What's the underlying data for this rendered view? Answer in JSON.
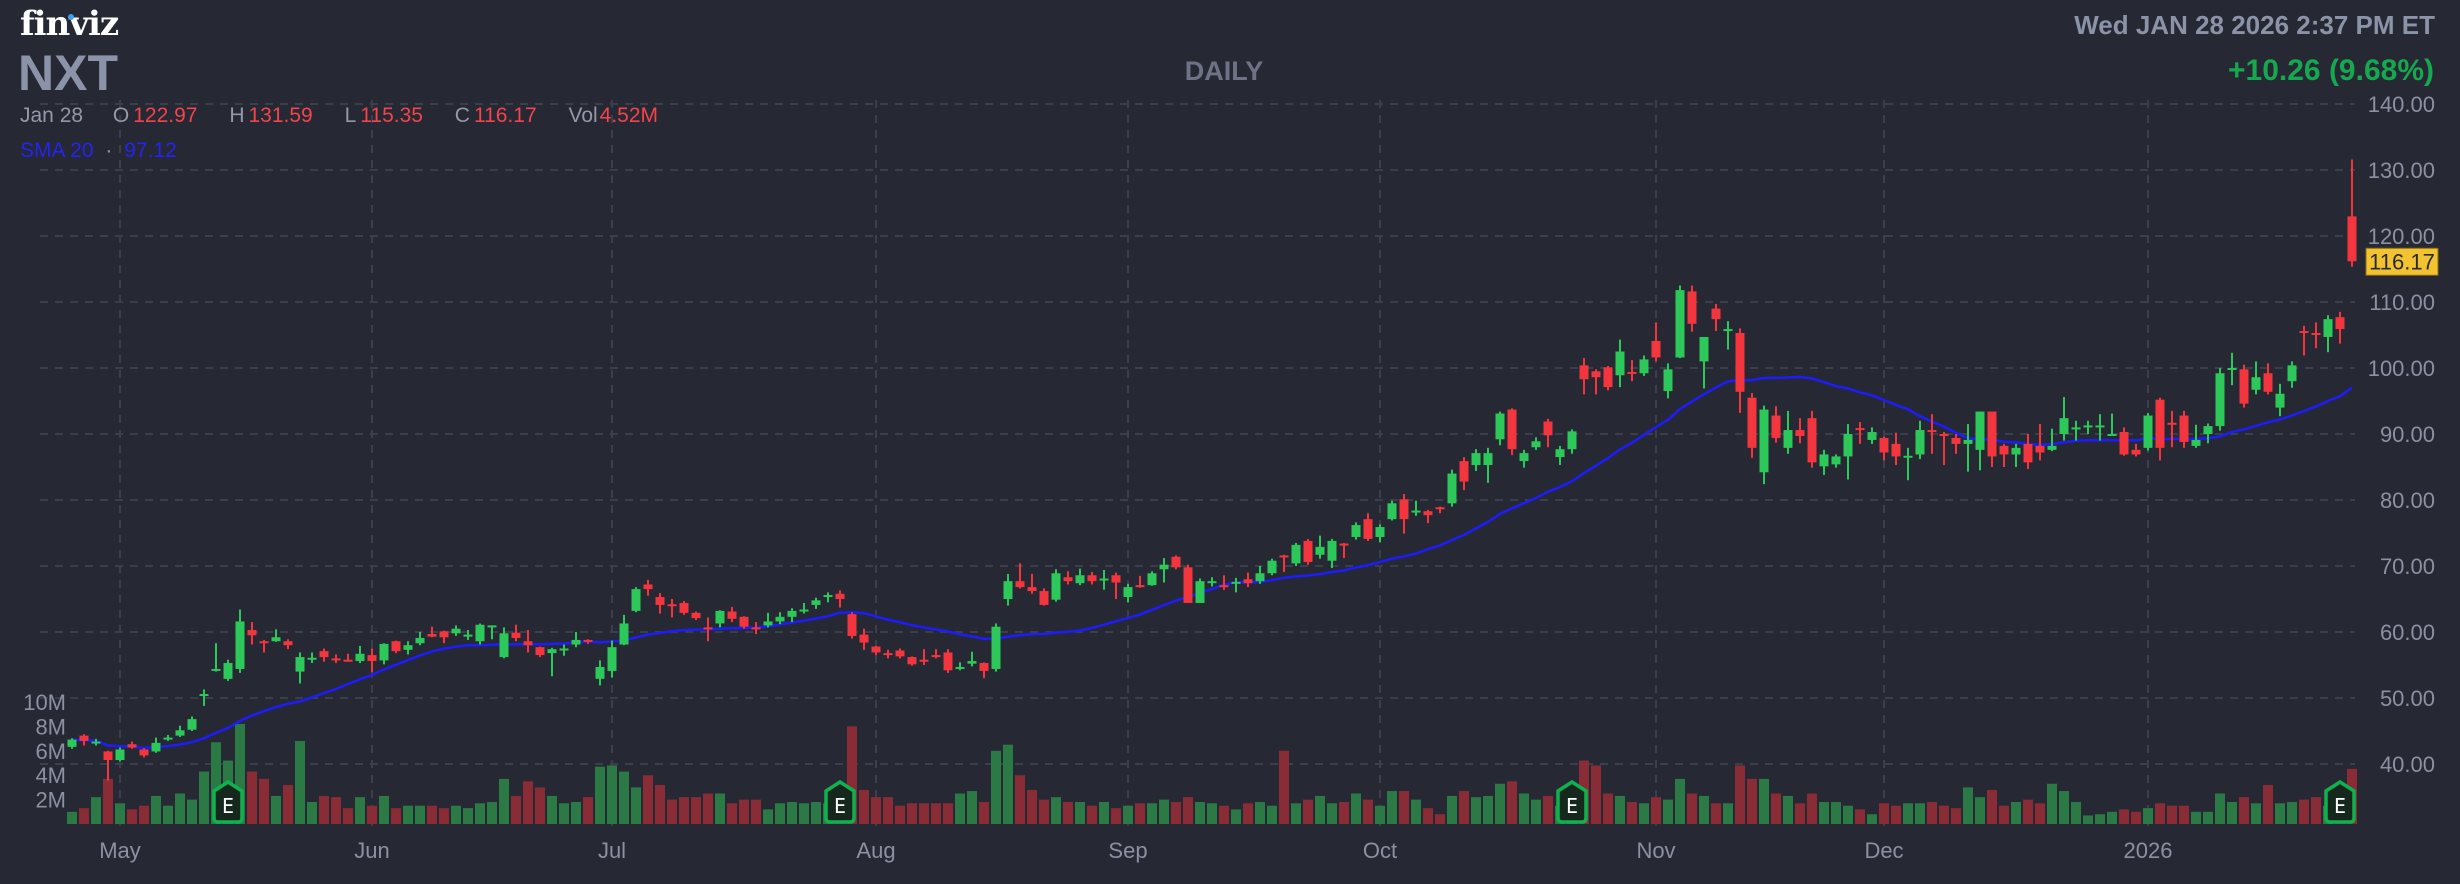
{
  "header": {
    "logo": "finviz",
    "ticker": "NXT",
    "period": "DAILY",
    "datetime": "Wed JAN 28 2026 2:37 PM ET",
    "change": "+10.26 (9.68%)",
    "ohlc": {
      "date": "Jan 28",
      "o_label": "O",
      "o": "122.97",
      "h_label": "H",
      "h": "131.59",
      "l_label": "L",
      "l": "115.35",
      "c_label": "C",
      "c": "116.17",
      "vol_label": "Vol",
      "vol": "4.52M"
    },
    "sma": {
      "label": "SMA 20",
      "sep": "·",
      "value": "97.12"
    }
  },
  "colors": {
    "background": "#262833",
    "up": "#2dc85a",
    "down": "#f3363e",
    "vol_up": "#2b7a45",
    "vol_down": "#8a2c35",
    "sma": "#1c1cff",
    "grid": "#3b3e4b",
    "axis_text": "#8b91a3",
    "last_price_badge": "#f2c230",
    "earnings": "#10b24e"
  },
  "chart_data": {
    "type": "candlestick",
    "title": "NXT DAILY",
    "last_price": "116.17",
    "ylim": [
      40,
      140
    ],
    "price_ticks": [
      "40.00",
      "50.00",
      "60.00",
      "70.00",
      "80.00",
      "90.00",
      "100.00",
      "110.00",
      "120.00",
      "130.00",
      "140.00"
    ],
    "volume_ticks": [
      {
        "label": "2M",
        "v": 2
      },
      {
        "label": "4M",
        "v": 4
      },
      {
        "label": "6M",
        "v": 6
      },
      {
        "label": "8M",
        "v": 8
      },
      {
        "label": "10M",
        "v": 10
      }
    ],
    "months": [
      {
        "label": "May",
        "index": 4
      },
      {
        "label": "Jun",
        "index": 25
      },
      {
        "label": "Jul",
        "index": 45
      },
      {
        "label": "Aug",
        "index": 67
      },
      {
        "label": "Sep",
        "index": 88
      },
      {
        "label": "Oct",
        "index": 109
      },
      {
        "label": "Nov",
        "index": 132
      },
      {
        "label": "Dec",
        "index": 151
      },
      {
        "label": "2026",
        "index": 173
      }
    ],
    "earnings_label": "E",
    "earnings_indices": [
      13,
      64,
      125,
      189
    ],
    "sma_period": 20,
    "ohlc": [
      [
        42.6,
        43.9,
        42.3,
        43.7
      ],
      [
        44.3,
        44.5,
        42.8,
        43.5
      ],
      [
        43.3,
        43.8,
        42.8,
        43.4
      ],
      [
        41.9,
        42.0,
        37.5,
        40.6
      ],
      [
        40.6,
        42.5,
        40.4,
        42.2
      ],
      [
        43.0,
        43.4,
        42.3,
        42.5
      ],
      [
        42.2,
        42.4,
        41.0,
        41.3
      ],
      [
        41.9,
        44.0,
        41.7,
        43.2
      ],
      [
        43.9,
        44.4,
        43.5,
        44.0
      ],
      [
        44.3,
        45.8,
        44.1,
        45.1
      ],
      [
        45.2,
        47.2,
        45.0,
        46.8
      ],
      [
        50.5,
        51.3,
        48.8,
        50.6
      ],
      [
        54.2,
        58.3,
        54.0,
        54.4
      ],
      [
        52.9,
        55.8,
        52.6,
        55.3
      ],
      [
        54.4,
        63.4,
        53.8,
        61.6
      ],
      [
        60.3,
        61.5,
        58.1,
        59.5
      ],
      [
        58.6,
        58.8,
        56.9,
        58.5
      ],
      [
        58.6,
        60.4,
        58.5,
        59.2
      ],
      [
        58.6,
        58.9,
        57.4,
        58.0
      ],
      [
        54.0,
        56.9,
        52.2,
        56.2
      ],
      [
        56.0,
        56.9,
        55.3,
        56.1
      ],
      [
        57.1,
        57.5,
        55.5,
        56.2
      ],
      [
        56.0,
        56.6,
        55.3,
        55.9
      ],
      [
        55.8,
        56.7,
        55.6,
        55.7
      ],
      [
        55.6,
        57.9,
        55.3,
        56.7
      ],
      [
        56.5,
        57.5,
        53.9,
        55.6
      ],
      [
        55.7,
        58.3,
        55.1,
        58.2
      ],
      [
        58.6,
        58.7,
        56.8,
        57.1
      ],
      [
        57.3,
        58.6,
        56.6,
        58.0
      ],
      [
        58.3,
        60.0,
        58.0,
        59.1
      ],
      [
        59.7,
        60.8,
        59.2,
        59.3
      ],
      [
        60.1,
        60.2,
        58.3,
        59.2
      ],
      [
        59.8,
        61.0,
        59.4,
        60.5
      ],
      [
        59.5,
        60.3,
        58.8,
        59.6
      ],
      [
        58.6,
        61.3,
        58.1,
        61.1
      ],
      [
        60.9,
        61.0,
        58.9,
        61.0
      ],
      [
        56.2,
        60.7,
        56.0,
        59.8
      ],
      [
        59.9,
        61.1,
        58.6,
        59.1
      ],
      [
        58.6,
        60.3,
        56.9,
        58.0
      ],
      [
        57.7,
        57.8,
        56.2,
        56.5
      ],
      [
        56.8,
        57.6,
        53.3,
        57.4
      ],
      [
        57.4,
        58.1,
        56.4,
        57.5
      ],
      [
        58.1,
        60.0,
        57.7,
        58.8
      ],
      [
        58.8,
        58.9,
        58.2,
        58.6
      ],
      [
        52.9,
        55.7,
        51.9,
        54.7
      ],
      [
        54.1,
        58.7,
        53.1,
        57.7
      ],
      [
        58.1,
        62.6,
        58.0,
        61.3
      ],
      [
        63.2,
        66.8,
        63.0,
        66.5
      ],
      [
        67.2,
        67.9,
        65.5,
        66.5
      ],
      [
        65.3,
        65.9,
        62.8,
        64.1
      ],
      [
        64.2,
        65.0,
        62.2,
        64.1
      ],
      [
        64.4,
        64.7,
        62.6,
        62.9
      ],
      [
        62.9,
        63.1,
        61.8,
        62.1
      ],
      [
        60.7,
        62.2,
        58.6,
        60.4
      ],
      [
        61.3,
        63.3,
        60.7,
        63.2
      ],
      [
        63.1,
        63.8,
        61.5,
        62.0
      ],
      [
        62.3,
        62.4,
        60.5,
        60.8
      ],
      [
        60.7,
        61.5,
        59.7,
        60.6
      ],
      [
        61.0,
        62.9,
        60.7,
        61.6
      ],
      [
        61.6,
        63.0,
        61.2,
        62.3
      ],
      [
        62.3,
        63.6,
        61.5,
        63.2
      ],
      [
        63.3,
        64.4,
        62.8,
        63.4
      ],
      [
        64.1,
        65.2,
        63.5,
        64.8
      ],
      [
        65.5,
        66.0,
        64.5,
        65.6
      ],
      [
        65.8,
        66.3,
        63.7,
        65.0
      ],
      [
        62.7,
        63.0,
        59.0,
        59.4
      ],
      [
        59.6,
        60.5,
        57.3,
        58.4
      ],
      [
        57.8,
        57.9,
        56.5,
        56.9
      ],
      [
        56.8,
        57.3,
        56.0,
        56.7
      ],
      [
        57.2,
        57.5,
        56.0,
        56.3
      ],
      [
        56.2,
        56.3,
        54.9,
        55.1
      ],
      [
        55.8,
        57.4,
        55.0,
        55.7
      ],
      [
        56.5,
        57.4,
        56.0,
        56.2
      ],
      [
        56.9,
        57.4,
        53.8,
        54.2
      ],
      [
        54.5,
        55.4,
        54.2,
        54.7
      ],
      [
        55.2,
        57.0,
        54.8,
        55.6
      ],
      [
        55.3,
        55.4,
        53.0,
        54.1
      ],
      [
        54.4,
        61.3,
        54.0,
        60.8
      ],
      [
        65.0,
        68.8,
        64.0,
        67.7
      ],
      [
        67.7,
        70.4,
        66.6,
        66.8
      ],
      [
        66.8,
        68.8,
        65.8,
        66.2
      ],
      [
        66.2,
        66.6,
        64.0,
        64.1
      ],
      [
        64.9,
        69.5,
        64.6,
        68.9
      ],
      [
        68.3,
        69.2,
        67.2,
        67.7
      ],
      [
        67.4,
        69.6,
        67.1,
        68.6
      ],
      [
        68.6,
        69.1,
        67.2,
        67.7
      ],
      [
        68.0,
        69.4,
        66.4,
        68.1
      ],
      [
        68.6,
        69.0,
        65.0,
        67.5
      ],
      [
        65.3,
        67.3,
        64.5,
        66.8
      ],
      [
        67.1,
        68.5,
        66.7,
        66.9
      ],
      [
        67.1,
        69.2,
        67.0,
        68.9
      ],
      [
        69.5,
        71.2,
        67.5,
        70.2
      ],
      [
        71.4,
        71.6,
        69.5,
        69.8
      ],
      [
        69.8,
        70.2,
        64.4,
        64.4
      ],
      [
        64.4,
        68.1,
        64.4,
        67.7
      ],
      [
        67.6,
        68.3,
        66.9,
        67.7
      ],
      [
        67.1,
        68.6,
        66.4,
        67.0
      ],
      [
        67.3,
        68.2,
        66.0,
        67.6
      ],
      [
        68.0,
        69.0,
        66.8,
        67.4
      ],
      [
        67.7,
        70.0,
        67.3,
        68.9
      ],
      [
        68.9,
        71.1,
        68.6,
        70.8
      ],
      [
        71.6,
        71.7,
        69.1,
        71.5
      ],
      [
        70.4,
        73.5,
        70.0,
        73.2
      ],
      [
        73.8,
        74.1,
        70.2,
        70.6
      ],
      [
        71.7,
        74.6,
        71.1,
        72.9
      ],
      [
        70.8,
        74.1,
        69.7,
        73.8
      ],
      [
        73.4,
        73.5,
        71.2,
        73.2
      ],
      [
        74.4,
        76.6,
        74.0,
        76.2
      ],
      [
        77.1,
        78.0,
        73.8,
        74.1
      ],
      [
        74.4,
        76.3,
        73.6,
        75.9
      ],
      [
        77.1,
        79.9,
        76.9,
        79.5
      ],
      [
        80.1,
        80.9,
        74.9,
        77.1
      ],
      [
        78.3,
        79.9,
        77.6,
        78.4
      ],
      [
        78.3,
        78.5,
        76.5,
        77.7
      ],
      [
        78.9,
        79.0,
        78.0,
        78.8
      ],
      [
        79.5,
        84.6,
        79.0,
        84.0
      ],
      [
        85.9,
        86.5,
        81.5,
        82.8
      ],
      [
        85.3,
        87.7,
        84.4,
        87.1
      ],
      [
        85.3,
        87.9,
        82.6,
        87.1
      ],
      [
        89.2,
        93.4,
        88.3,
        93.1
      ],
      [
        93.7,
        93.9,
        86.8,
        87.7
      ],
      [
        85.9,
        87.6,
        84.9,
        87.1
      ],
      [
        88.0,
        89.5,
        87.6,
        88.9
      ],
      [
        91.9,
        92.3,
        88.0,
        89.8
      ],
      [
        86.5,
        88.2,
        85.3,
        87.7
      ],
      [
        87.7,
        90.7,
        87.0,
        90.4
      ],
      [
        100.4,
        101.5,
        96.0,
        98.3
      ],
      [
        99.5,
        99.8,
        96.0,
        98.6
      ],
      [
        100.1,
        100.3,
        96.6,
        97.1
      ],
      [
        98.9,
        104.3,
        97.1,
        102.5
      ],
      [
        99.4,
        101.2,
        98.0,
        99.3
      ],
      [
        99.2,
        101.9,
        98.8,
        101.3
      ],
      [
        104.1,
        106.9,
        101.0,
        101.6
      ],
      [
        96.5,
        100.7,
        95.4,
        99.8
      ],
      [
        101.6,
        112.5,
        101.5,
        111.8
      ],
      [
        111.6,
        112.5,
        105.5,
        106.7
      ],
      [
        101.0,
        104.7,
        96.9,
        104.7
      ],
      [
        109.0,
        109.7,
        105.6,
        107.4
      ],
      [
        105.8,
        107.1,
        102.8,
        105.9
      ],
      [
        105.3,
        106.0,
        93.2,
        96.4
      ],
      [
        95.5,
        96.2,
        86.4,
        87.9
      ],
      [
        84.2,
        94.3,
        82.4,
        93.7
      ],
      [
        92.8,
        94.2,
        88.7,
        89.4
      ],
      [
        87.9,
        93.5,
        87.0,
        90.6
      ],
      [
        90.6,
        92.4,
        88.6,
        89.7
      ],
      [
        92.4,
        93.5,
        84.9,
        85.7
      ],
      [
        85.1,
        87.6,
        83.8,
        86.9
      ],
      [
        85.4,
        86.9,
        84.9,
        86.6
      ],
      [
        86.6,
        91.5,
        83.1,
        90.0
      ],
      [
        90.9,
        91.8,
        88.5,
        90.8
      ],
      [
        89.1,
        91.0,
        88.5,
        90.3
      ],
      [
        89.4,
        89.6,
        86.0,
        87.2
      ],
      [
        88.5,
        90.2,
        85.3,
        86.6
      ],
      [
        86.6,
        87.9,
        83.0,
        86.7
      ],
      [
        86.9,
        92.0,
        86.2,
        90.6
      ],
      [
        90.6,
        93.0,
        87.0,
        90.5
      ],
      [
        90.0,
        90.3,
        85.3,
        89.9
      ],
      [
        89.4,
        90.0,
        87.0,
        88.5
      ],
      [
        88.5,
        91.5,
        84.3,
        89.1
      ],
      [
        87.6,
        93.4,
        84.5,
        93.4
      ],
      [
        93.4,
        93.4,
        85.0,
        86.6
      ],
      [
        88.2,
        88.5,
        85.0,
        86.9
      ],
      [
        86.9,
        88.5,
        85.0,
        87.9
      ],
      [
        88.5,
        90.0,
        84.7,
        85.7
      ],
      [
        88.2,
        91.5,
        86.0,
        87.2
      ],
      [
        87.6,
        90.8,
        87.4,
        88.2
      ],
      [
        90.0,
        95.6,
        89.0,
        92.4
      ],
      [
        90.9,
        92.0,
        89.0,
        91.0
      ],
      [
        91.2,
        92.0,
        90.0,
        91.3
      ],
      [
        91.2,
        93.0,
        89.0,
        91.3
      ],
      [
        89.9,
        93.1,
        89.7,
        90.0
      ],
      [
        90.3,
        91.0,
        86.7,
        86.9
      ],
      [
        87.6,
        88.5,
        86.6,
        86.9
      ],
      [
        87.9,
        93.2,
        87.5,
        92.8
      ],
      [
        95.2,
        95.5,
        86.0,
        87.9
      ],
      [
        91.7,
        93.5,
        88.0,
        91.6
      ],
      [
        92.8,
        93.5,
        87.9,
        88.8
      ],
      [
        88.2,
        91.4,
        87.9,
        89.1
      ],
      [
        90.0,
        91.6,
        88.6,
        91.2
      ],
      [
        91.2,
        100.0,
        90.5,
        99.2
      ],
      [
        99.9,
        102.3,
        97.4,
        100.0
      ],
      [
        99.8,
        100.5,
        94.0,
        94.6
      ],
      [
        96.7,
        101.0,
        96.0,
        98.6
      ],
      [
        99.2,
        100.7,
        96.0,
        96.4
      ],
      [
        94.0,
        97.6,
        92.7,
        96.1
      ],
      [
        98.0,
        101.0,
        97.0,
        100.4
      ],
      [
        105.6,
        106.4,
        101.9,
        105.5
      ],
      [
        105.3,
        106.9,
        103.0,
        105.2
      ],
      [
        104.7,
        108.0,
        102.4,
        107.4
      ],
      [
        107.7,
        108.5,
        103.7,
        105.9
      ],
      [
        122.97,
        131.59,
        115.35,
        116.17
      ]
    ],
    "volume_millions": [
      1.0,
      1.3,
      2.2,
      3.7,
      1.7,
      1.2,
      1.5,
      2.3,
      1.5,
      2.5,
      2.0,
      4.3,
      6.7,
      5.2,
      8.2,
      4.3,
      3.7,
      2.3,
      3.2,
      6.8,
      1.8,
      2.3,
      2.2,
      1.3,
      2.2,
      1.5,
      2.3,
      1.3,
      1.5,
      1.5,
      1.5,
      1.3,
      1.5,
      1.3,
      1.7,
      1.8,
      3.7,
      2.3,
      3.5,
      3.0,
      2.3,
      1.7,
      1.8,
      2.2,
      4.7,
      4.8,
      4.3,
      3.0,
      4.0,
      3.2,
      2.0,
      2.2,
      2.2,
      2.5,
      2.5,
      1.7,
      2.0,
      2.0,
      1.2,
      1.7,
      1.8,
      1.7,
      1.8,
      1.7,
      1.7,
      8.0,
      2.8,
      2.2,
      2.2,
      1.5,
      1.7,
      1.7,
      1.7,
      1.7,
      2.5,
      2.7,
      1.8,
      6.0,
      6.5,
      4.0,
      2.8,
      2.0,
      2.2,
      1.8,
      1.8,
      1.5,
      1.8,
      1.3,
      1.5,
      1.7,
      1.7,
      2.0,
      1.8,
      2.2,
      1.8,
      1.7,
      1.5,
      1.2,
      1.7,
      1.8,
      1.5,
      6.0,
      1.7,
      2.0,
      2.3,
      1.7,
      1.8,
      2.5,
      2.0,
      1.5,
      2.7,
      2.7,
      2.0,
      1.3,
      0.8,
      2.3,
      2.7,
      2.2,
      2.3,
      3.3,
      3.5,
      2.5,
      2.0,
      2.3,
      1.5,
      1.5,
      5.2,
      4.8,
      2.5,
      2.3,
      1.8,
      1.7,
      2.2,
      2.0,
      3.7,
      2.5,
      2.3,
      1.7,
      1.7,
      4.8,
      3.7,
      3.7,
      2.5,
      2.3,
      1.7,
      2.5,
      1.8,
      1.8,
      1.5,
      1.2,
      0.8,
      1.7,
      1.5,
      1.7,
      1.7,
      1.8,
      1.5,
      1.3,
      3.0,
      2.2,
      2.8,
      1.5,
      1.8,
      2.0,
      1.7,
      3.3,
      2.7,
      1.8,
      0.7,
      0.8,
      1.0,
      1.2,
      1.0,
      1.3,
      1.7,
      1.5,
      1.5,
      1.0,
      1.0,
      2.5,
      1.8,
      2.2,
      1.7,
      3.2,
      1.7,
      1.8,
      2.0,
      2.2,
      1.5,
      1.5,
      4.52
    ]
  }
}
